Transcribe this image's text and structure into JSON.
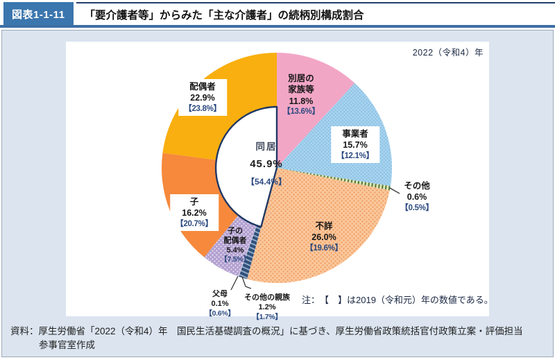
{
  "header": {
    "badge": "図表1-1-11",
    "title": "「要介護者等」からみた「主な介護者」の続柄別構成割合"
  },
  "year_label": "2022（令和4）年",
  "note": "注：　【　】は2019（令和元）年の数値である。",
  "source": {
    "line1": "資料：厚生労働省「2022（令和4）年　国民生活基礎調査の概況」に基づき、厚生労働省政策統括官付政策立案・評価担当",
    "line2": "参事官室作成"
  },
  "chart_data": {
    "type": "pie",
    "title": "「要介護者等」からみた「主な介護者」の続柄別構成割合",
    "year": "2022（令和4）年",
    "start_angle_deg": 0,
    "direction": "clockwise",
    "slices": [
      {
        "id": "bekkyo-kazoku",
        "name": "別居の家族等",
        "value": 11.8,
        "value_2019": 13.6,
        "pct_text": "11.8%",
        "prev_text": "【13.6%】",
        "color": "#F2A6C6",
        "pattern": null,
        "label_lines": [
          "別居の",
          "家族等"
        ],
        "label_x": 339,
        "label_y": 45,
        "boxed": false,
        "small": false
      },
      {
        "id": "jigyosha",
        "name": "事業者",
        "value": 15.7,
        "value_2019": 12.1,
        "pct_text": "15.7%",
        "prev_text": "【12.1%】",
        "color": "#A6D2EE",
        "pattern": "dots-blue",
        "label_lines": [
          "事業者"
        ],
        "label_x": 417,
        "label_y": 122,
        "boxed": true,
        "small": false
      },
      {
        "id": "sonota",
        "name": "その他",
        "value": 0.6,
        "value_2019": 0.5,
        "pct_text": "0.6%",
        "prev_text": "【0.5%】",
        "color": "#DCE5B4",
        "pattern": "stripes-green",
        "label_lines": [
          "その他"
        ],
        "label_x": 506,
        "label_y": 200,
        "boxed": false,
        "small": false
      },
      {
        "id": "fusho",
        "name": "不詳",
        "value": 26.0,
        "value_2019": 19.6,
        "pct_text": "26.0%",
        "prev_text": "【19.6%】",
        "color": "#FAC79B",
        "pattern": "dots-orange",
        "label_lines": [
          "不詳"
        ],
        "label_x": 372,
        "label_y": 258,
        "boxed": false,
        "small": false
      },
      {
        "id": "sonota-shinzoku",
        "name": "その他の親族",
        "value": 1.2,
        "value_2019": 1.7,
        "pct_text": "1.2%",
        "prev_text": "【1.7%】",
        "color": "#2F507B",
        "pattern": "stripes-navy",
        "label_lines": [
          "その他の親族"
        ],
        "label_x": 290,
        "label_y": 363,
        "boxed": false,
        "small": true
      },
      {
        "id": "fubo",
        "name": "父母",
        "value": 0.1,
        "value_2019": 0.6,
        "pct_text": "0.1%",
        "prev_text": "【0.6%】",
        "color": "#D8D2E8",
        "pattern": null,
        "label_lines": [
          "父母"
        ],
        "label_x": 222,
        "label_y": 358,
        "boxed": false,
        "small": true
      },
      {
        "id": "ko-haigusha",
        "name": "子の配偶者",
        "value": 5.4,
        "value_2019": 7.5,
        "pct_text": "5.4%",
        "prev_text": "【7.5%】",
        "color": "#B3A1D1",
        "pattern": "dots-purple",
        "label_lines": [
          "子の",
          "配偶者"
        ],
        "label_x": 244,
        "label_y": 267,
        "boxed": false,
        "small": true
      },
      {
        "id": "ko",
        "name": "子",
        "value": 16.2,
        "value_2019": 20.7,
        "pct_text": "16.2%",
        "prev_text": "【20.7%】",
        "color": "#F6893B",
        "pattern": null,
        "label_lines": [
          "子"
        ],
        "label_x": 185,
        "label_y": 220,
        "boxed": true,
        "small": false
      },
      {
        "id": "haigusha",
        "name": "配偶者",
        "value": 22.9,
        "value_2019": 23.8,
        "pct_text": "22.9%",
        "prev_text": "【23.8%】",
        "color": "#F9AF0F",
        "pattern": null,
        "label_lines": [
          "配偶者"
        ],
        "label_x": 197,
        "label_y": 54,
        "boxed": true,
        "small": false
      }
    ],
    "center": {
      "label": "同居",
      "value": 45.9,
      "value_2019": 54.4,
      "pct_text": "45.9%",
      "prev_text": "【54.4%】",
      "start_index": 4,
      "color": "#FFFFFF",
      "border_color": "#1F3864"
    }
  }
}
